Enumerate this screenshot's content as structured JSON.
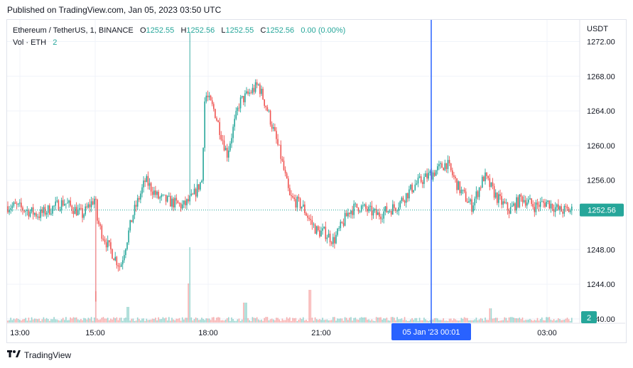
{
  "published": "Published on TradingView.com, Jan 05, 2023 03:50 UTC",
  "legend": {
    "symbol": "Ethereum / TetherUS, 1, BINANCE",
    "o_label": "O",
    "o_value": "1252.55",
    "h_label": "H",
    "h_value": "1252.56",
    "l_label": "L",
    "l_value": "1252.55",
    "c_label": "C",
    "c_value": "1252.56",
    "change": "0.00 (0.00%)",
    "vol_label": "Vol · ETH",
    "vol_value": "2"
  },
  "footer_logo": "TradingView",
  "colors": {
    "up": "#26a69a",
    "down": "#ef5350",
    "crosshair": "#2962ff",
    "price_tag": "#26a69a",
    "grid": "#f0f3fa",
    "axis_text": "#131722"
  },
  "chart_data": {
    "type": "candlestick",
    "currency": "USDT",
    "y_ticks": [
      "1272.00",
      "1268.00",
      "1264.00",
      "1260.00",
      "1256.00",
      "1248.00",
      "1244.00",
      "1240.00"
    ],
    "ylim": [
      1239.5,
      1274.5
    ],
    "x_ticks": [
      "13:00",
      "15:00",
      "18:00",
      "21:00",
      "03:00"
    ],
    "last_price": "1252.56",
    "volume_last": "2",
    "crosshair_label": "05 Jan '23   00:01",
    "series": [
      {
        "name": "price_path",
        "x": [
          "12:53",
          "13:30",
          "14:10",
          "14:40",
          "15:00",
          "15:03",
          "15:10",
          "15:20",
          "15:40",
          "16:00",
          "16:20",
          "16:40",
          "17:20",
          "17:35",
          "17:50",
          "17:55",
          "18:10",
          "18:30",
          "18:50",
          "19:05",
          "19:20",
          "19:35",
          "19:55",
          "20:10",
          "20:30",
          "20:45",
          "20:55",
          "21:05",
          "21:20",
          "21:45",
          "22:00",
          "22:30",
          "23:00",
          "23:30",
          "00:01",
          "00:20",
          "00:40",
          "01:00",
          "01:20",
          "01:40",
          "02:00",
          "02:20",
          "02:40",
          "03:00",
          "03:20",
          "03:50"
        ],
        "values": [
          1253,
          1252,
          1253.5,
          1252,
          1254,
          1251.5,
          1250,
          1248.5,
          1246,
          1252,
          1256,
          1254,
          1253,
          1254,
          1256,
          1266,
          1264,
          1259,
          1265,
          1266,
          1267,
          1264,
          1259,
          1254,
          1253,
          1251,
          1250,
          1250,
          1249,
          1252.5,
          1253,
          1252,
          1253,
          1255.5,
          1257,
          1258,
          1255,
          1253,
          1256.5,
          1254,
          1252.5,
          1254,
          1253,
          1253.5,
          1252.5,
          1252.56
        ]
      }
    ],
    "annotations": {
      "high_wick": 1273.0,
      "low_wick": 1242.0
    }
  }
}
